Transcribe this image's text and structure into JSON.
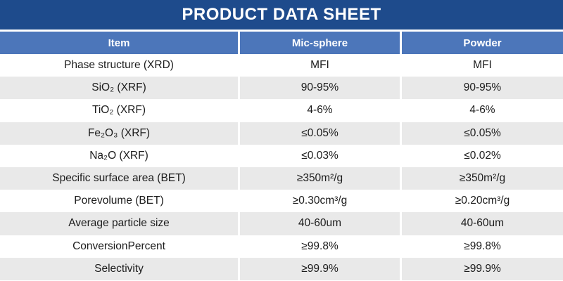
{
  "title": "PRODUCT DATA SHEET",
  "colors": {
    "title_bar": "#1E4B8C",
    "header_row": "#4C76BA",
    "row_alternate": "#E9E9E9",
    "text": "#1c1c1c"
  },
  "table": {
    "columns": [
      "Item",
      "Mic-sphere",
      "Powder"
    ],
    "rows": [
      [
        "Phase structure (XRD)",
        "MFI",
        "MFI"
      ],
      [
        "SiO₂ (XRF)",
        "90-95%",
        "90-95%"
      ],
      [
        "TiO₂ (XRF)",
        "4-6%",
        "4-6%"
      ],
      [
        "Fe₂O₃ (XRF)",
        "≤0.05%",
        "≤0.05%"
      ],
      [
        "Na₂O (XRF)",
        "≤0.03%",
        "≤0.02%"
      ],
      [
        "Specific surface area (BET)",
        "≥350m²/g",
        "≥350m²/g"
      ],
      [
        "Porevolume (BET)",
        "≥0.30cm³/g",
        "≥0.20cm³/g"
      ],
      [
        "Average particle size",
        "40-60um",
        "40-60um"
      ],
      [
        "ConversionPercent",
        "≥99.8%",
        "≥99.8%"
      ],
      [
        "Selectivity",
        "≥99.9%",
        "≥99.9%"
      ]
    ]
  }
}
